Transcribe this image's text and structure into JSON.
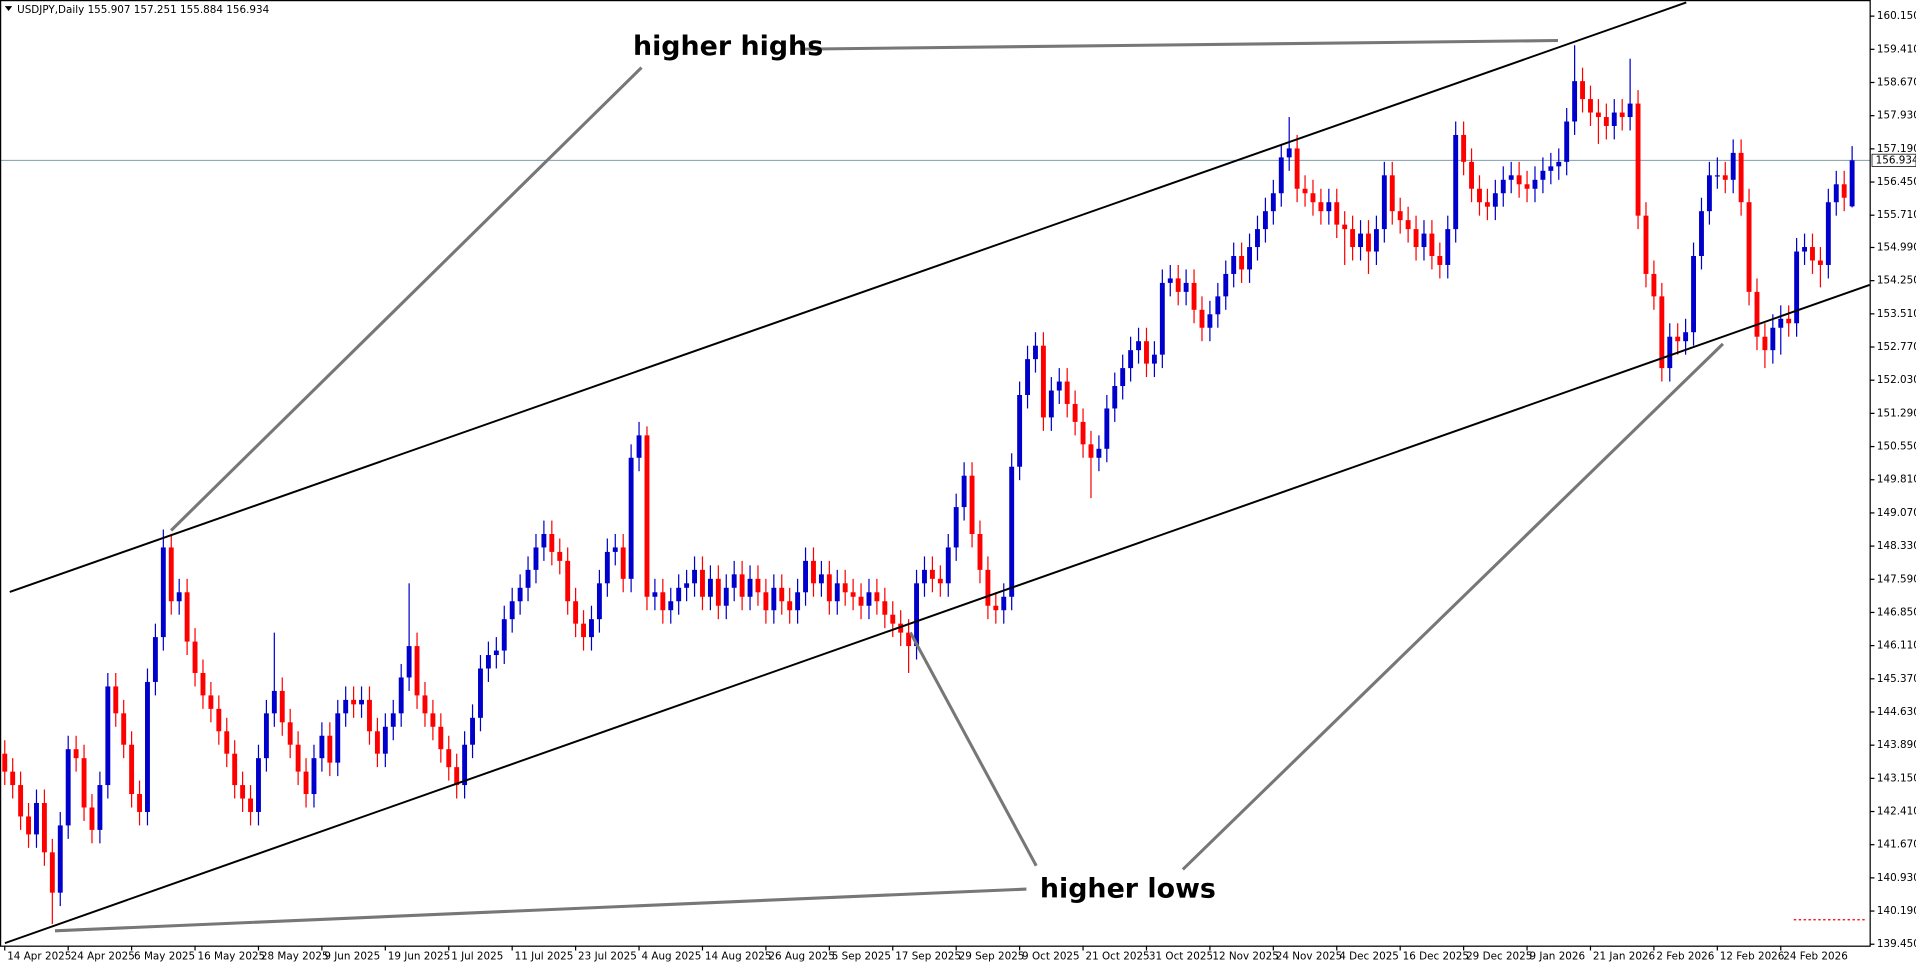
{
  "chart_data": {
    "type": "candlestick",
    "title": "USDJPY,Daily  155.907 157.251 155.884 156.934",
    "annotations": [
      "higher highs",
      "higher lows"
    ],
    "up_color": "#0000cc",
    "down_color": "#ff0000",
    "last_price": {
      "value": 156.934,
      "label": "156.934"
    },
    "xlim": [
      -0.6,
      235.2
    ],
    "xticks": [
      {
        "value": 0,
        "label": "14 Apr 2025"
      },
      {
        "value": 8,
        "label": "24 Apr 2025"
      },
      {
        "value": 16,
        "label": "6 May 2025"
      },
      {
        "value": 24,
        "label": "16 May 2025"
      },
      {
        "value": 32,
        "label": "28 May 2025"
      },
      {
        "value": 40,
        "label": "9 Jun 2025"
      },
      {
        "value": 48,
        "label": "19 Jun 2025"
      },
      {
        "value": 56,
        "label": "1 Jul 2025"
      },
      {
        "value": 64,
        "label": "11 Jul 2025"
      },
      {
        "value": 72,
        "label": "23 Jul 2025"
      },
      {
        "value": 80,
        "label": "4 Aug 2025"
      },
      {
        "value": 88,
        "label": "14 Aug 2025"
      },
      {
        "value": 96,
        "label": "26 Aug 2025"
      },
      {
        "value": 104,
        "label": "5 Sep 2025"
      },
      {
        "value": 112,
        "label": "17 Sep 2025"
      },
      {
        "value": 120,
        "label": "29 Sep 2025"
      },
      {
        "value": 128,
        "label": "9 Oct 2025"
      },
      {
        "value": 136,
        "label": "21 Oct 2025"
      },
      {
        "value": 144,
        "label": "31 Oct 2025"
      },
      {
        "value": 152,
        "label": "12 Nov 2025"
      },
      {
        "value": 160,
        "label": "24 Nov 2025"
      },
      {
        "value": 168,
        "label": "4 Dec 2025"
      },
      {
        "value": 176,
        "label": "16 Dec 2025"
      },
      {
        "value": 184,
        "label": "29 Dec 2025"
      },
      {
        "value": 192,
        "label": "9 Jan 2026"
      },
      {
        "value": 200,
        "label": "21 Jan 2026"
      },
      {
        "value": 208,
        "label": "2 Feb 2026"
      },
      {
        "value": 216,
        "label": "12 Feb 2026"
      },
      {
        "value": 224,
        "label": "24 Feb 2026"
      }
    ],
    "ylim": [
      139.42,
      160.51
    ],
    "yticks": [
      {
        "value": 160.15,
        "label": "160.150"
      },
      {
        "value": 159.41,
        "label": "159.410"
      },
      {
        "value": 158.67,
        "label": "158.670"
      },
      {
        "value": 157.93,
        "label": "157.930"
      },
      {
        "value": 157.19,
        "label": "157.190"
      },
      {
        "value": 156.45,
        "label": "156.450"
      },
      {
        "value": 155.71,
        "label": "155.710"
      },
      {
        "value": 154.99,
        "label": "154.990"
      },
      {
        "value": 154.25,
        "label": "154.250"
      },
      {
        "value": 153.51,
        "label": "153.510"
      },
      {
        "value": 152.77,
        "label": "152.770"
      },
      {
        "value": 152.03,
        "label": "152.030"
      },
      {
        "value": 151.29,
        "label": "151.290"
      },
      {
        "value": 150.55,
        "label": "150.550"
      },
      {
        "value": 149.81,
        "label": "149.810"
      },
      {
        "value": 149.07,
        "label": "149.070"
      },
      {
        "value": 148.33,
        "label": "148.330"
      },
      {
        "value": 147.59,
        "label": "147.590"
      },
      {
        "value": 146.85,
        "label": "146.850"
      },
      {
        "value": 146.11,
        "label": "146.110"
      },
      {
        "value": 145.37,
        "label": "145.370"
      },
      {
        "value": 144.63,
        "label": "144.630"
      },
      {
        "value": 143.89,
        "label": "143.890"
      },
      {
        "value": 143.15,
        "label": "143.150"
      },
      {
        "value": 142.41,
        "label": "142.410"
      },
      {
        "value": 141.67,
        "label": "141.670"
      },
      {
        "value": 140.93,
        "label": "140.930"
      },
      {
        "value": 140.19,
        "label": "140.190"
      },
      {
        "value": 139.45,
        "label": "139.450"
      }
    ],
    "open": [
      143.7,
      143.3,
      143.0,
      142.3,
      141.9,
      142.6,
      141.5,
      140.6,
      142.1,
      143.8,
      143.6,
      142.5,
      142.0,
      143.0,
      145.2,
      144.6,
      143.9,
      142.8,
      142.4,
      145.3,
      146.3,
      148.3,
      147.1,
      147.3,
      146.2,
      145.5,
      145.0,
      144.7,
      144.2,
      143.7,
      143.0,
      142.7,
      142.4,
      143.6,
      144.6,
      145.1,
      144.4,
      143.9,
      143.3,
      142.8,
      143.6,
      144.1,
      143.5,
      144.6,
      144.9,
      144.8,
      144.9,
      144.2,
      143.7,
      144.3,
      144.6,
      145.4,
      146.1,
      145.0,
      144.6,
      144.3,
      143.8,
      143.4,
      143.0,
      143.9,
      144.5,
      145.6,
      145.9,
      146.0,
      146.7,
      147.1,
      147.4,
      147.8,
      148.3,
      148.6,
      148.2,
      148.0,
      147.1,
      146.6,
      146.3,
      146.7,
      147.5,
      148.2,
      148.3,
      147.6,
      150.3,
      150.8,
      147.2,
      147.3,
      146.9,
      147.1,
      147.4,
      147.5,
      147.8,
      147.2,
      147.6,
      147.0,
      147.4,
      147.7,
      147.2,
      147.6,
      147.3,
      146.9,
      147.4,
      147.1,
      146.9,
      147.3,
      148.0,
      147.5,
      147.7,
      147.1,
      147.5,
      147.3,
      147.2,
      147.0,
      147.3,
      147.1,
      146.8,
      146.6,
      146.4,
      146.1,
      147.5,
      147.8,
      147.6,
      147.5,
      148.3,
      149.2,
      149.9,
      148.6,
      147.8,
      147.0,
      146.9,
      147.2,
      150.1,
      151.7,
      152.5,
      152.8,
      151.2,
      151.8,
      152.0,
      151.5,
      151.1,
      150.6,
      150.3,
      150.5,
      151.4,
      151.9,
      152.3,
      152.7,
      152.9,
      152.4,
      152.6,
      154.2,
      154.3,
      154.0,
      154.2,
      153.6,
      153.2,
      153.5,
      153.9,
      154.4,
      154.8,
      154.5,
      155.0,
      155.4,
      155.8,
      156.2,
      157.0,
      157.2,
      156.3,
      156.2,
      156.0,
      155.8,
      156.0,
      155.5,
      155.4,
      155.0,
      155.3,
      154.9,
      155.4,
      156.6,
      155.8,
      155.6,
      155.4,
      155.0,
      155.3,
      154.8,
      154.6,
      155.4,
      157.5,
      156.9,
      156.3,
      156.0,
      155.9,
      156.2,
      156.5,
      156.6,
      156.4,
      156.3,
      156.5,
      156.7,
      156.8,
      156.9,
      157.8,
      158.7,
      158.3,
      158.0,
      157.9,
      157.7,
      158.0,
      157.9,
      158.2,
      155.7,
      154.4,
      153.9,
      152.3,
      153.0,
      152.9,
      153.1,
      154.8,
      155.8,
      156.6,
      156.6,
      156.5,
      157.1,
      156.0,
      154.0,
      153.0,
      152.7,
      153.2,
      153.4,
      153.3,
      154.9,
      155.0,
      154.7,
      154.6,
      156.0,
      156.4,
      155.907
    ],
    "high": [
      144.0,
      143.6,
      143.3,
      142.6,
      142.9,
      142.9,
      141.8,
      142.4,
      144.1,
      144.1,
      143.9,
      142.8,
      143.3,
      145.5,
      145.5,
      144.9,
      144.2,
      143.1,
      145.6,
      146.6,
      148.7,
      148.6,
      147.6,
      147.6,
      146.5,
      145.8,
      145.3,
      145.0,
      144.5,
      144.0,
      143.3,
      143.0,
      143.9,
      144.9,
      146.4,
      145.4,
      144.7,
      144.2,
      143.6,
      143.9,
      144.4,
      144.4,
      144.9,
      145.2,
      145.2,
      145.2,
      145.2,
      144.5,
      144.6,
      144.9,
      145.7,
      147.5,
      146.4,
      145.3,
      144.9,
      144.6,
      144.1,
      143.7,
      144.2,
      144.8,
      145.9,
      146.2,
      146.3,
      147.0,
      147.4,
      147.7,
      148.1,
      148.6,
      148.9,
      148.9,
      148.5,
      148.3,
      147.4,
      146.9,
      147.0,
      147.8,
      148.5,
      148.6,
      148.6,
      150.6,
      151.1,
      151.0,
      147.6,
      147.6,
      147.4,
      147.7,
      147.8,
      148.1,
      148.1,
      147.9,
      147.9,
      147.7,
      148.0,
      148.0,
      147.9,
      147.9,
      147.6,
      147.7,
      147.7,
      147.4,
      147.6,
      148.3,
      148.3,
      148.0,
      148.0,
      147.8,
      147.8,
      147.6,
      147.5,
      147.6,
      147.6,
      147.4,
      147.1,
      146.9,
      146.7,
      147.8,
      148.1,
      148.1,
      147.9,
      148.6,
      149.5,
      150.2,
      150.2,
      148.9,
      148.1,
      147.3,
      147.5,
      150.4,
      152.0,
      152.8,
      153.1,
      153.1,
      152.1,
      152.3,
      152.3,
      151.8,
      151.4,
      150.9,
      150.8,
      151.7,
      152.2,
      152.6,
      153.0,
      153.2,
      153.2,
      152.9,
      154.5,
      154.6,
      154.6,
      154.5,
      154.5,
      153.9,
      153.8,
      154.2,
      154.7,
      155.1,
      155.1,
      155.3,
      155.7,
      156.1,
      156.5,
      157.3,
      157.9,
      157.5,
      156.6,
      156.5,
      156.3,
      156.3,
      156.3,
      155.8,
      155.7,
      155.6,
      155.6,
      155.7,
      156.9,
      156.9,
      156.1,
      155.9,
      155.7,
      155.6,
      155.6,
      155.1,
      155.7,
      157.8,
      157.8,
      157.2,
      156.6,
      156.3,
      156.5,
      156.8,
      156.9,
      156.9,
      156.7,
      156.8,
      157.0,
      157.1,
      157.2,
      158.1,
      159.5,
      159.0,
      158.6,
      158.3,
      158.2,
      158.3,
      158.3,
      159.2,
      158.5,
      156.0,
      154.7,
      154.2,
      153.3,
      153.3,
      153.4,
      155.1,
      156.1,
      156.9,
      157.0,
      156.9,
      157.4,
      157.4,
      156.3,
      154.3,
      153.3,
      153.5,
      153.7,
      153.7,
      155.2,
      155.3,
      155.3,
      155.0,
      156.3,
      156.7,
      156.7,
      157.251
    ],
    "low": [
      143.0,
      142.7,
      142.0,
      141.6,
      141.6,
      141.2,
      139.9,
      140.3,
      141.8,
      143.3,
      142.2,
      141.7,
      141.7,
      142.7,
      144.3,
      143.6,
      142.5,
      142.1,
      142.1,
      145.0,
      146.0,
      146.8,
      146.8,
      145.9,
      145.2,
      144.7,
      144.4,
      143.9,
      143.4,
      142.7,
      142.4,
      142.1,
      142.1,
      143.3,
      144.3,
      144.1,
      143.6,
      143.0,
      142.5,
      142.5,
      143.3,
      143.2,
      143.2,
      144.3,
      144.5,
      144.5,
      143.9,
      143.4,
      143.4,
      144.0,
      144.3,
      145.1,
      144.7,
      144.3,
      144.0,
      143.5,
      143.1,
      142.7,
      142.7,
      143.6,
      144.2,
      145.3,
      145.6,
      145.7,
      146.4,
      146.8,
      147.1,
      147.5,
      148.0,
      147.9,
      147.7,
      146.8,
      146.3,
      146.0,
      146.0,
      146.4,
      147.2,
      147.9,
      147.3,
      147.3,
      150.0,
      146.9,
      146.9,
      146.6,
      146.6,
      146.8,
      147.1,
      147.2,
      146.9,
      146.9,
      146.7,
      146.7,
      147.1,
      146.9,
      146.9,
      147.0,
      146.6,
      146.6,
      146.8,
      146.6,
      146.6,
      147.0,
      147.2,
      147.2,
      146.8,
      146.8,
      147.0,
      146.9,
      146.7,
      146.7,
      146.8,
      146.5,
      146.3,
      146.1,
      145.5,
      145.8,
      147.2,
      147.3,
      147.2,
      147.2,
      148.0,
      148.9,
      148.3,
      147.5,
      146.7,
      146.6,
      146.6,
      146.9,
      149.8,
      151.4,
      152.2,
      150.9,
      150.9,
      151.5,
      151.2,
      150.8,
      150.3,
      149.4,
      150.0,
      150.2,
      151.1,
      151.6,
      152.0,
      152.4,
      152.1,
      152.1,
      152.3,
      153.9,
      153.7,
      153.7,
      153.3,
      152.9,
      152.9,
      153.2,
      153.6,
      154.1,
      154.2,
      154.2,
      154.7,
      155.1,
      155.5,
      155.9,
      156.7,
      156.0,
      155.9,
      155.7,
      155.5,
      155.5,
      155.2,
      154.6,
      154.7,
      154.7,
      154.4,
      154.6,
      155.1,
      155.5,
      155.3,
      155.1,
      154.7,
      154.7,
      154.5,
      154.3,
      154.3,
      155.1,
      156.6,
      156.0,
      155.7,
      155.6,
      155.6,
      155.9,
      156.2,
      156.1,
      156.0,
      156.0,
      156.2,
      156.4,
      156.5,
      156.6,
      157.5,
      158.0,
      157.7,
      157.3,
      157.4,
      157.4,
      157.6,
      157.6,
      155.4,
      154.1,
      153.6,
      152.0,
      152.0,
      152.6,
      152.6,
      152.8,
      154.5,
      155.5,
      156.3,
      156.2,
      156.2,
      155.7,
      153.7,
      152.7,
      152.3,
      152.4,
      152.6,
      153.0,
      153.0,
      154.6,
      154.4,
      154.1,
      154.3,
      155.7,
      155.8,
      155.884
    ],
    "close": [
      143.3,
      143.0,
      142.3,
      141.9,
      142.6,
      141.5,
      140.6,
      142.1,
      143.8,
      143.6,
      142.5,
      142.0,
      143.0,
      145.2,
      144.6,
      143.9,
      142.8,
      142.4,
      145.3,
      146.3,
      148.3,
      147.1,
      147.3,
      146.2,
      145.5,
      145.0,
      144.7,
      144.2,
      143.7,
      143.0,
      142.7,
      142.4,
      143.6,
      144.6,
      145.1,
      144.4,
      143.9,
      143.3,
      142.8,
      143.6,
      144.1,
      143.5,
      144.6,
      144.9,
      144.8,
      144.9,
      144.2,
      143.7,
      144.3,
      144.6,
      145.4,
      146.1,
      145.0,
      144.6,
      144.3,
      143.8,
      143.4,
      143.0,
      143.9,
      144.5,
      145.6,
      145.9,
      146.0,
      146.7,
      147.1,
      147.4,
      147.8,
      148.3,
      148.6,
      148.2,
      148.0,
      147.1,
      146.6,
      146.3,
      146.7,
      147.5,
      148.2,
      148.3,
      147.6,
      150.3,
      150.8,
      147.2,
      147.3,
      146.9,
      147.1,
      147.4,
      147.5,
      147.8,
      147.2,
      147.6,
      147.0,
      147.4,
      147.7,
      147.2,
      147.6,
      147.3,
      146.9,
      147.4,
      147.1,
      146.9,
      147.3,
      148.0,
      147.5,
      147.7,
      147.1,
      147.5,
      147.3,
      147.2,
      147.0,
      147.3,
      147.1,
      146.8,
      146.6,
      146.4,
      146.1,
      147.5,
      147.8,
      147.6,
      147.5,
      148.3,
      149.2,
      149.9,
      148.6,
      147.8,
      147.0,
      146.9,
      147.2,
      150.1,
      151.7,
      152.5,
      152.8,
      151.2,
      151.8,
      152.0,
      151.5,
      151.1,
      150.6,
      150.3,
      150.5,
      151.4,
      151.9,
      152.3,
      152.7,
      152.9,
      152.4,
      152.6,
      154.2,
      154.3,
      154.0,
      154.2,
      153.6,
      153.2,
      153.5,
      153.9,
      154.4,
      154.8,
      154.5,
      155.0,
      155.4,
      155.8,
      156.2,
      157.0,
      157.2,
      156.3,
      156.2,
      156.0,
      155.8,
      156.0,
      155.5,
      155.4,
      155.0,
      155.3,
      154.9,
      155.4,
      156.6,
      155.8,
      155.6,
      155.4,
      155.0,
      155.3,
      154.8,
      154.6,
      155.4,
      157.5,
      156.9,
      156.3,
      156.0,
      155.9,
      156.2,
      156.5,
      156.6,
      156.4,
      156.3,
      156.5,
      156.7,
      156.8,
      156.9,
      157.8,
      158.7,
      158.3,
      158.0,
      157.9,
      157.7,
      158.0,
      157.9,
      158.2,
      155.7,
      154.4,
      153.9,
      152.3,
      153.0,
      152.9,
      153.1,
      154.8,
      155.8,
      156.6,
      156.6,
      156.5,
      157.1,
      156.0,
      154.0,
      153.0,
      152.7,
      153.2,
      153.4,
      153.3,
      154.9,
      155.0,
      154.7,
      154.6,
      156.0,
      156.4,
      156.1,
      156.934
    ]
  }
}
